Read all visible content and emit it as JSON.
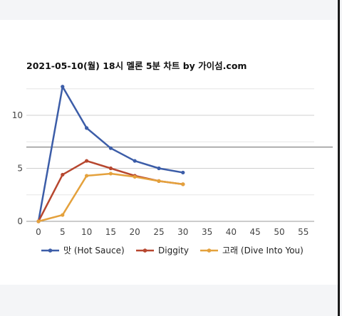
{
  "chart_data": {
    "type": "line",
    "title": "2021-05-10(월) 18시 멜론 5분 차트 by 가이섬.com",
    "xlabel": "",
    "ylabel": "",
    "x": [
      0,
      5,
      10,
      15,
      20,
      25,
      30
    ],
    "x_ticks": [
      0,
      5,
      10,
      15,
      20,
      25,
      30,
      35,
      40,
      45,
      50,
      55
    ],
    "xlim": [
      0,
      55
    ],
    "y_ticks": [
      0,
      5,
      10
    ],
    "ylim": [
      0,
      12.5
    ],
    "reference_line": 7.0,
    "grid": true,
    "legend_position": "bottom",
    "series": [
      {
        "name": "맛 (Hot Sauce)",
        "color": "#3c5da8",
        "values": [
          0,
          12.7,
          8.8,
          6.9,
          5.7,
          5.0,
          4.6
        ]
      },
      {
        "name": "Diggity",
        "color": "#b7472f",
        "values": [
          0,
          4.4,
          5.7,
          5.0,
          4.3,
          3.8,
          3.5
        ]
      },
      {
        "name": "고래 (Dive Into You)",
        "color": "#e4a13c",
        "values": [
          0,
          0.6,
          4.3,
          4.5,
          4.2,
          3.8,
          3.5
        ]
      }
    ]
  }
}
